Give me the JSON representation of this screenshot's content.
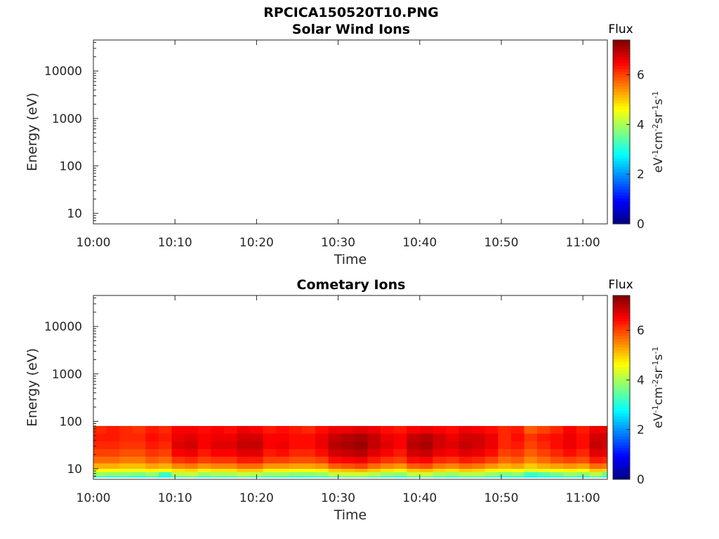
{
  "figure": {
    "filename_title": "RPCICA150520T10.PNG"
  },
  "colors": {
    "colormap": "jet",
    "axis": "#262626",
    "background": "#ffffff"
  },
  "chart_data": [
    {
      "type": "heatmap",
      "title": "Solar Wind Ions",
      "xlabel": "Time",
      "ylabel": "Energy (eV)",
      "x_ticks": [
        "10:00",
        "10:10",
        "10:20",
        "10:30",
        "10:40",
        "10:50",
        "11:00"
      ],
      "y_ticks": [
        "10",
        "100",
        "1000",
        "10000"
      ],
      "y_scale": "log",
      "xlim": [
        "10:00",
        "11:03"
      ],
      "ylim": [
        6,
        45000
      ],
      "colorbar": {
        "title": "Flux",
        "label": "eV-1cm-2sr-1s-1",
        "ticks": [
          "0",
          "2",
          "4",
          "6"
        ],
        "range": [
          0,
          7.4
        ]
      },
      "flux": []
    },
    {
      "type": "heatmap",
      "title": "Cometary Ions",
      "xlabel": "Time",
      "ylabel": "Energy (eV)",
      "x_ticks": [
        "10:00",
        "10:10",
        "10:20",
        "10:30",
        "10:40",
        "10:50",
        "11:00"
      ],
      "y_ticks": [
        "10",
        "100",
        "1000",
        "10000"
      ],
      "y_scale": "log",
      "xlim": [
        "10:00",
        "11:03"
      ],
      "ylim": [
        6,
        45000
      ],
      "colorbar": {
        "title": "Flux",
        "label": "eV-1cm-2sr-1s-1",
        "ticks": [
          "0",
          "2",
          "4",
          "6"
        ],
        "range": [
          0,
          7.4
        ]
      },
      "time_bins": [
        "10:00",
        "10:01.6",
        "10:03.2",
        "10:04.8",
        "10:06.4",
        "10:08",
        "10:09.6",
        "10:11.2",
        "10:12.8",
        "10:14.4",
        "10:16",
        "10:17.6",
        "10:19.2",
        "10:20.8",
        "10:22.4",
        "10:24",
        "10:25.6",
        "10:27.2",
        "10:28.8",
        "10:30.4",
        "10:32",
        "10:33.6",
        "10:35.2",
        "10:36.8",
        "10:38.4",
        "10:40",
        "10:41.6",
        "10:43.2",
        "10:44.8",
        "10:46.4",
        "10:48",
        "10:49.6",
        "10:51.2",
        "10:52.8",
        "10:54.4",
        "10:56",
        "10:57.6",
        "10:59.2",
        "11:00.8",
        "11:02.4"
      ],
      "energy_bins_eV": [
        80,
        55,
        38,
        26,
        18,
        13,
        10,
        8.5,
        7
      ],
      "flux": [
        [
          6.2,
          6.3,
          6.2,
          6.1,
          6.3,
          6.2,
          6.5,
          6.5,
          6.4,
          6.5,
          6.4,
          6.6,
          6.5,
          6.3,
          6.4,
          6.3,
          6.2,
          6.4,
          6.6,
          6.6,
          6.7,
          6.6,
          6.4,
          6.3,
          6.5,
          6.6,
          6.5,
          6.4,
          6.6,
          6.5,
          6.4,
          6.2,
          6.3,
          5.8,
          6.0,
          6.2,
          6.5,
          6.3,
          6.6,
          6.6
        ],
        [
          6.3,
          6.3,
          6.2,
          6.2,
          6.4,
          6.3,
          6.6,
          6.7,
          6.5,
          6.6,
          6.6,
          6.8,
          6.8,
          6.5,
          6.5,
          6.4,
          6.4,
          6.6,
          6.9,
          7.0,
          7.1,
          6.9,
          6.6,
          6.5,
          6.9,
          7.0,
          6.8,
          6.6,
          6.8,
          6.8,
          6.6,
          6.2,
          6.4,
          6.1,
          6.3,
          6.4,
          6.6,
          6.4,
          6.8,
          6.8
        ],
        [
          6.2,
          6.2,
          6.1,
          6.1,
          6.3,
          6.2,
          6.7,
          6.8,
          6.5,
          6.7,
          6.7,
          6.9,
          6.9,
          6.5,
          6.6,
          6.4,
          6.4,
          6.6,
          7.0,
          7.1,
          7.2,
          6.9,
          6.7,
          6.5,
          7.0,
          7.1,
          6.8,
          6.7,
          6.9,
          6.8,
          6.6,
          6.2,
          6.3,
          6.0,
          6.2,
          6.4,
          6.6,
          6.4,
          6.9,
          6.8
        ],
        [
          6.0,
          6.0,
          5.9,
          5.9,
          6.1,
          6.0,
          6.5,
          6.6,
          6.3,
          6.5,
          6.5,
          6.7,
          6.7,
          6.3,
          6.4,
          6.2,
          6.2,
          6.4,
          6.8,
          6.9,
          7.0,
          6.7,
          6.5,
          6.3,
          6.8,
          6.9,
          6.6,
          6.5,
          6.7,
          6.6,
          6.4,
          6.0,
          6.1,
          5.8,
          6.0,
          6.2,
          6.4,
          6.2,
          6.7,
          6.6
        ],
        [
          5.7,
          5.7,
          5.6,
          5.6,
          5.8,
          5.7,
          6.1,
          6.2,
          6.0,
          6.1,
          6.1,
          6.3,
          6.3,
          6.0,
          6.0,
          5.9,
          5.9,
          6.0,
          6.4,
          6.5,
          6.6,
          6.3,
          6.1,
          6.0,
          6.4,
          6.5,
          6.2,
          6.1,
          6.3,
          6.2,
          6.0,
          5.7,
          5.8,
          5.5,
          5.7,
          5.9,
          6.0,
          5.9,
          6.3,
          6.2
        ],
        [
          5.2,
          5.2,
          5.1,
          5.1,
          5.3,
          5.2,
          5.5,
          5.6,
          5.4,
          5.5,
          5.5,
          5.7,
          5.7,
          5.4,
          5.4,
          5.3,
          5.3,
          5.4,
          5.8,
          5.9,
          6.0,
          5.7,
          5.5,
          5.4,
          5.8,
          5.9,
          5.6,
          5.5,
          5.7,
          5.6,
          5.4,
          5.2,
          5.3,
          5.0,
          5.2,
          5.3,
          5.4,
          5.3,
          5.7,
          5.6
        ],
        [
          4.6,
          4.6,
          4.5,
          4.5,
          4.7,
          4.6,
          4.8,
          4.9,
          4.7,
          4.8,
          4.8,
          5.0,
          5.0,
          4.7,
          4.7,
          4.6,
          4.6,
          4.7,
          5.0,
          5.1,
          5.2,
          5.0,
          4.8,
          4.7,
          5.0,
          5.1,
          4.9,
          4.8,
          5.0,
          4.9,
          4.7,
          4.5,
          4.6,
          4.4,
          4.5,
          4.6,
          4.7,
          4.6,
          5.0,
          4.9
        ],
        [
          3.9,
          3.8,
          3.8,
          3.7,
          3.9,
          3.2,
          4.1,
          4.2,
          3.9,
          4.0,
          4.0,
          4.2,
          4.1,
          3.9,
          3.9,
          3.8,
          3.8,
          3.9,
          4.2,
          4.3,
          4.3,
          4.1,
          3.9,
          3.8,
          4.2,
          4.3,
          4.0,
          3.9,
          4.1,
          4.1,
          3.9,
          3.7,
          3.8,
          3.2,
          3.4,
          3.6,
          3.9,
          3.8,
          4.1,
          3.5
        ],
        [
          3.1,
          3.0,
          3.0,
          2.9,
          3.1,
          2.8,
          3.3,
          3.4,
          3.1,
          3.2,
          3.2,
          3.4,
          3.3,
          3.1,
          3.1,
          3.0,
          3.0,
          3.1,
          3.4,
          3.5,
          3.5,
          3.3,
          3.1,
          3.0,
          3.4,
          3.5,
          3.2,
          3.1,
          3.3,
          3.3,
          3.1,
          2.9,
          3.0,
          2.7,
          2.9,
          3.0,
          3.1,
          3.0,
          3.3,
          3.0
        ]
      ]
    }
  ]
}
